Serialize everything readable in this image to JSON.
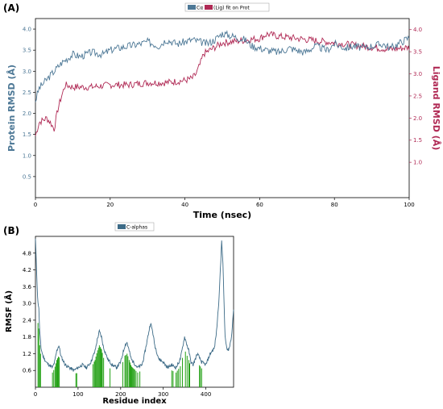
{
  "colors": {
    "protein": "#4d7896",
    "ligand": "#b02a55",
    "rmsf": "#3d6b87",
    "contact": "#22a014",
    "axis": "#000000"
  },
  "panelA": {
    "label": "(A)"
  },
  "panelB": {
    "label": "(B)"
  },
  "chart_data": [
    {
      "type": "line",
      "panel": "(A)",
      "xlabel": "Time (nsec)",
      "ylabel": "Protein RMSD (Å)",
      "y2label": "Ligand RMSD (Å)",
      "xlim": [
        0,
        100
      ],
      "ylim": [
        0,
        4.25
      ],
      "y2lim": [
        0.2,
        4.25
      ],
      "xticks": [
        "0",
        "20",
        "40",
        "60",
        "80",
        "100"
      ],
      "yticks": [
        "0.5",
        "1.0",
        "1.5",
        "2.0",
        "2.5",
        "3.0",
        "3.5",
        "4.0"
      ],
      "y2ticks": [
        "1.0",
        "1.5",
        "2.0",
        "2.5",
        "3.0",
        "3.5",
        "4.0"
      ],
      "legend": {
        "placement": "top-center",
        "entries": [
          "Cα",
          "(Lig) fit on Prot"
        ]
      },
      "series": [
        {
          "name": "Cα",
          "axis": "left",
          "x": [
            0,
            1,
            2,
            3,
            5,
            7,
            10,
            12,
            15,
            18,
            20,
            22,
            25,
            28,
            30,
            33,
            35,
            38,
            40,
            42,
            44,
            46,
            48,
            50,
            52,
            54,
            56,
            58,
            60,
            62,
            65,
            68,
            70,
            72,
            75,
            78,
            80,
            83,
            85,
            88,
            90,
            93,
            95,
            98,
            100
          ],
          "values": [
            2.3,
            2.6,
            2.7,
            2.8,
            3.0,
            3.2,
            3.4,
            3.35,
            3.45,
            3.4,
            3.5,
            3.55,
            3.6,
            3.65,
            3.7,
            3.6,
            3.75,
            3.65,
            3.7,
            3.75,
            3.7,
            3.65,
            3.75,
            3.9,
            3.85,
            3.8,
            3.75,
            3.6,
            3.55,
            3.5,
            3.45,
            3.55,
            3.5,
            3.45,
            3.6,
            3.5,
            3.65,
            3.55,
            3.6,
            3.55,
            3.6,
            3.65,
            3.55,
            3.7,
            3.8
          ]
        },
        {
          "name": "(Lig) fit on Prot",
          "axis": "right",
          "x": [
            0,
            1,
            2,
            3,
            4,
            5,
            6,
            7,
            8,
            10,
            15,
            20,
            25,
            30,
            35,
            40,
            42,
            43,
            44,
            45,
            48,
            50,
            55,
            60,
            62,
            65,
            70,
            75,
            80,
            85,
            90,
            95,
            100
          ],
          "values": [
            1.6,
            1.9,
            1.95,
            2.0,
            1.9,
            1.75,
            2.2,
            2.5,
            2.75,
            2.7,
            2.7,
            2.75,
            2.75,
            2.8,
            2.8,
            2.85,
            2.9,
            3.0,
            3.2,
            3.45,
            3.6,
            3.7,
            3.75,
            3.8,
            3.9,
            3.85,
            3.8,
            3.75,
            3.7,
            3.65,
            3.6,
            3.55,
            3.6
          ]
        }
      ]
    },
    {
      "type": "line",
      "panel": "(B)",
      "xlabel": "Residue index",
      "ylabel": "RMSF (Å)",
      "xlim": [
        0,
        465
      ],
      "ylim": [
        0,
        5.4
      ],
      "xticks": [
        "0",
        "100",
        "200",
        "300",
        "400"
      ],
      "yticks": [
        "0.6",
        "1.2",
        "1.8",
        "2.4",
        "3.0",
        "3.6",
        "4.2",
        "4.8"
      ],
      "legend": {
        "placement": "top-center",
        "entries": [
          "C-alphas"
        ]
      },
      "series": [
        {
          "name": "C-alphas",
          "x": [
            0,
            2,
            5,
            8,
            10,
            13,
            18,
            25,
            32,
            40,
            45,
            50,
            55,
            60,
            70,
            80,
            90,
            100,
            110,
            120,
            130,
            140,
            145,
            150,
            155,
            160,
            170,
            180,
            190,
            200,
            205,
            210,
            215,
            220,
            225,
            230,
            240,
            250,
            255,
            260,
            265,
            270,
            275,
            280,
            290,
            300,
            310,
            320,
            330,
            340,
            345,
            350,
            360,
            365,
            370,
            375,
            380,
            390,
            400,
            410,
            420,
            425,
            430,
            435,
            437,
            440,
            445,
            450,
            455,
            460,
            465
          ],
          "values": [
            5.3,
            4.5,
            3.2,
            2.8,
            2.0,
            1.4,
            1.1,
            0.9,
            0.8,
            0.7,
            0.9,
            1.3,
            1.5,
            1.1,
            0.8,
            0.7,
            0.6,
            0.7,
            0.8,
            0.7,
            0.9,
            1.3,
            1.7,
            2.0,
            1.8,
            1.4,
            1.0,
            0.8,
            0.7,
            0.9,
            1.2,
            1.5,
            1.6,
            1.3,
            1.0,
            0.9,
            0.7,
            0.8,
            1.1,
            1.5,
            1.9,
            2.3,
            2.0,
            1.5,
            1.0,
            0.9,
            0.7,
            0.8,
            0.7,
            1.0,
            1.4,
            1.8,
            1.3,
            0.9,
            0.8,
            1.0,
            1.2,
            0.9,
            0.8,
            1.2,
            1.4,
            2.0,
            3.0,
            4.5,
            5.3,
            4.4,
            1.8,
            1.3,
            1.4,
            1.8,
            2.8
          ]
        }
      ],
      "contact_residues": [
        6,
        8,
        10,
        12,
        40,
        43,
        46,
        48,
        50,
        52,
        54,
        56,
        95,
        97,
        135,
        138,
        140,
        142,
        144,
        146,
        148,
        150,
        152,
        154,
        155,
        157,
        160,
        175,
        205,
        210,
        212,
        215,
        217,
        220,
        222,
        224,
        226,
        228,
        230,
        232,
        233,
        236,
        240,
        245,
        320,
        323,
        330,
        333,
        336,
        340,
        345,
        352,
        356,
        360,
        362,
        385,
        387,
        390
      ]
    }
  ]
}
